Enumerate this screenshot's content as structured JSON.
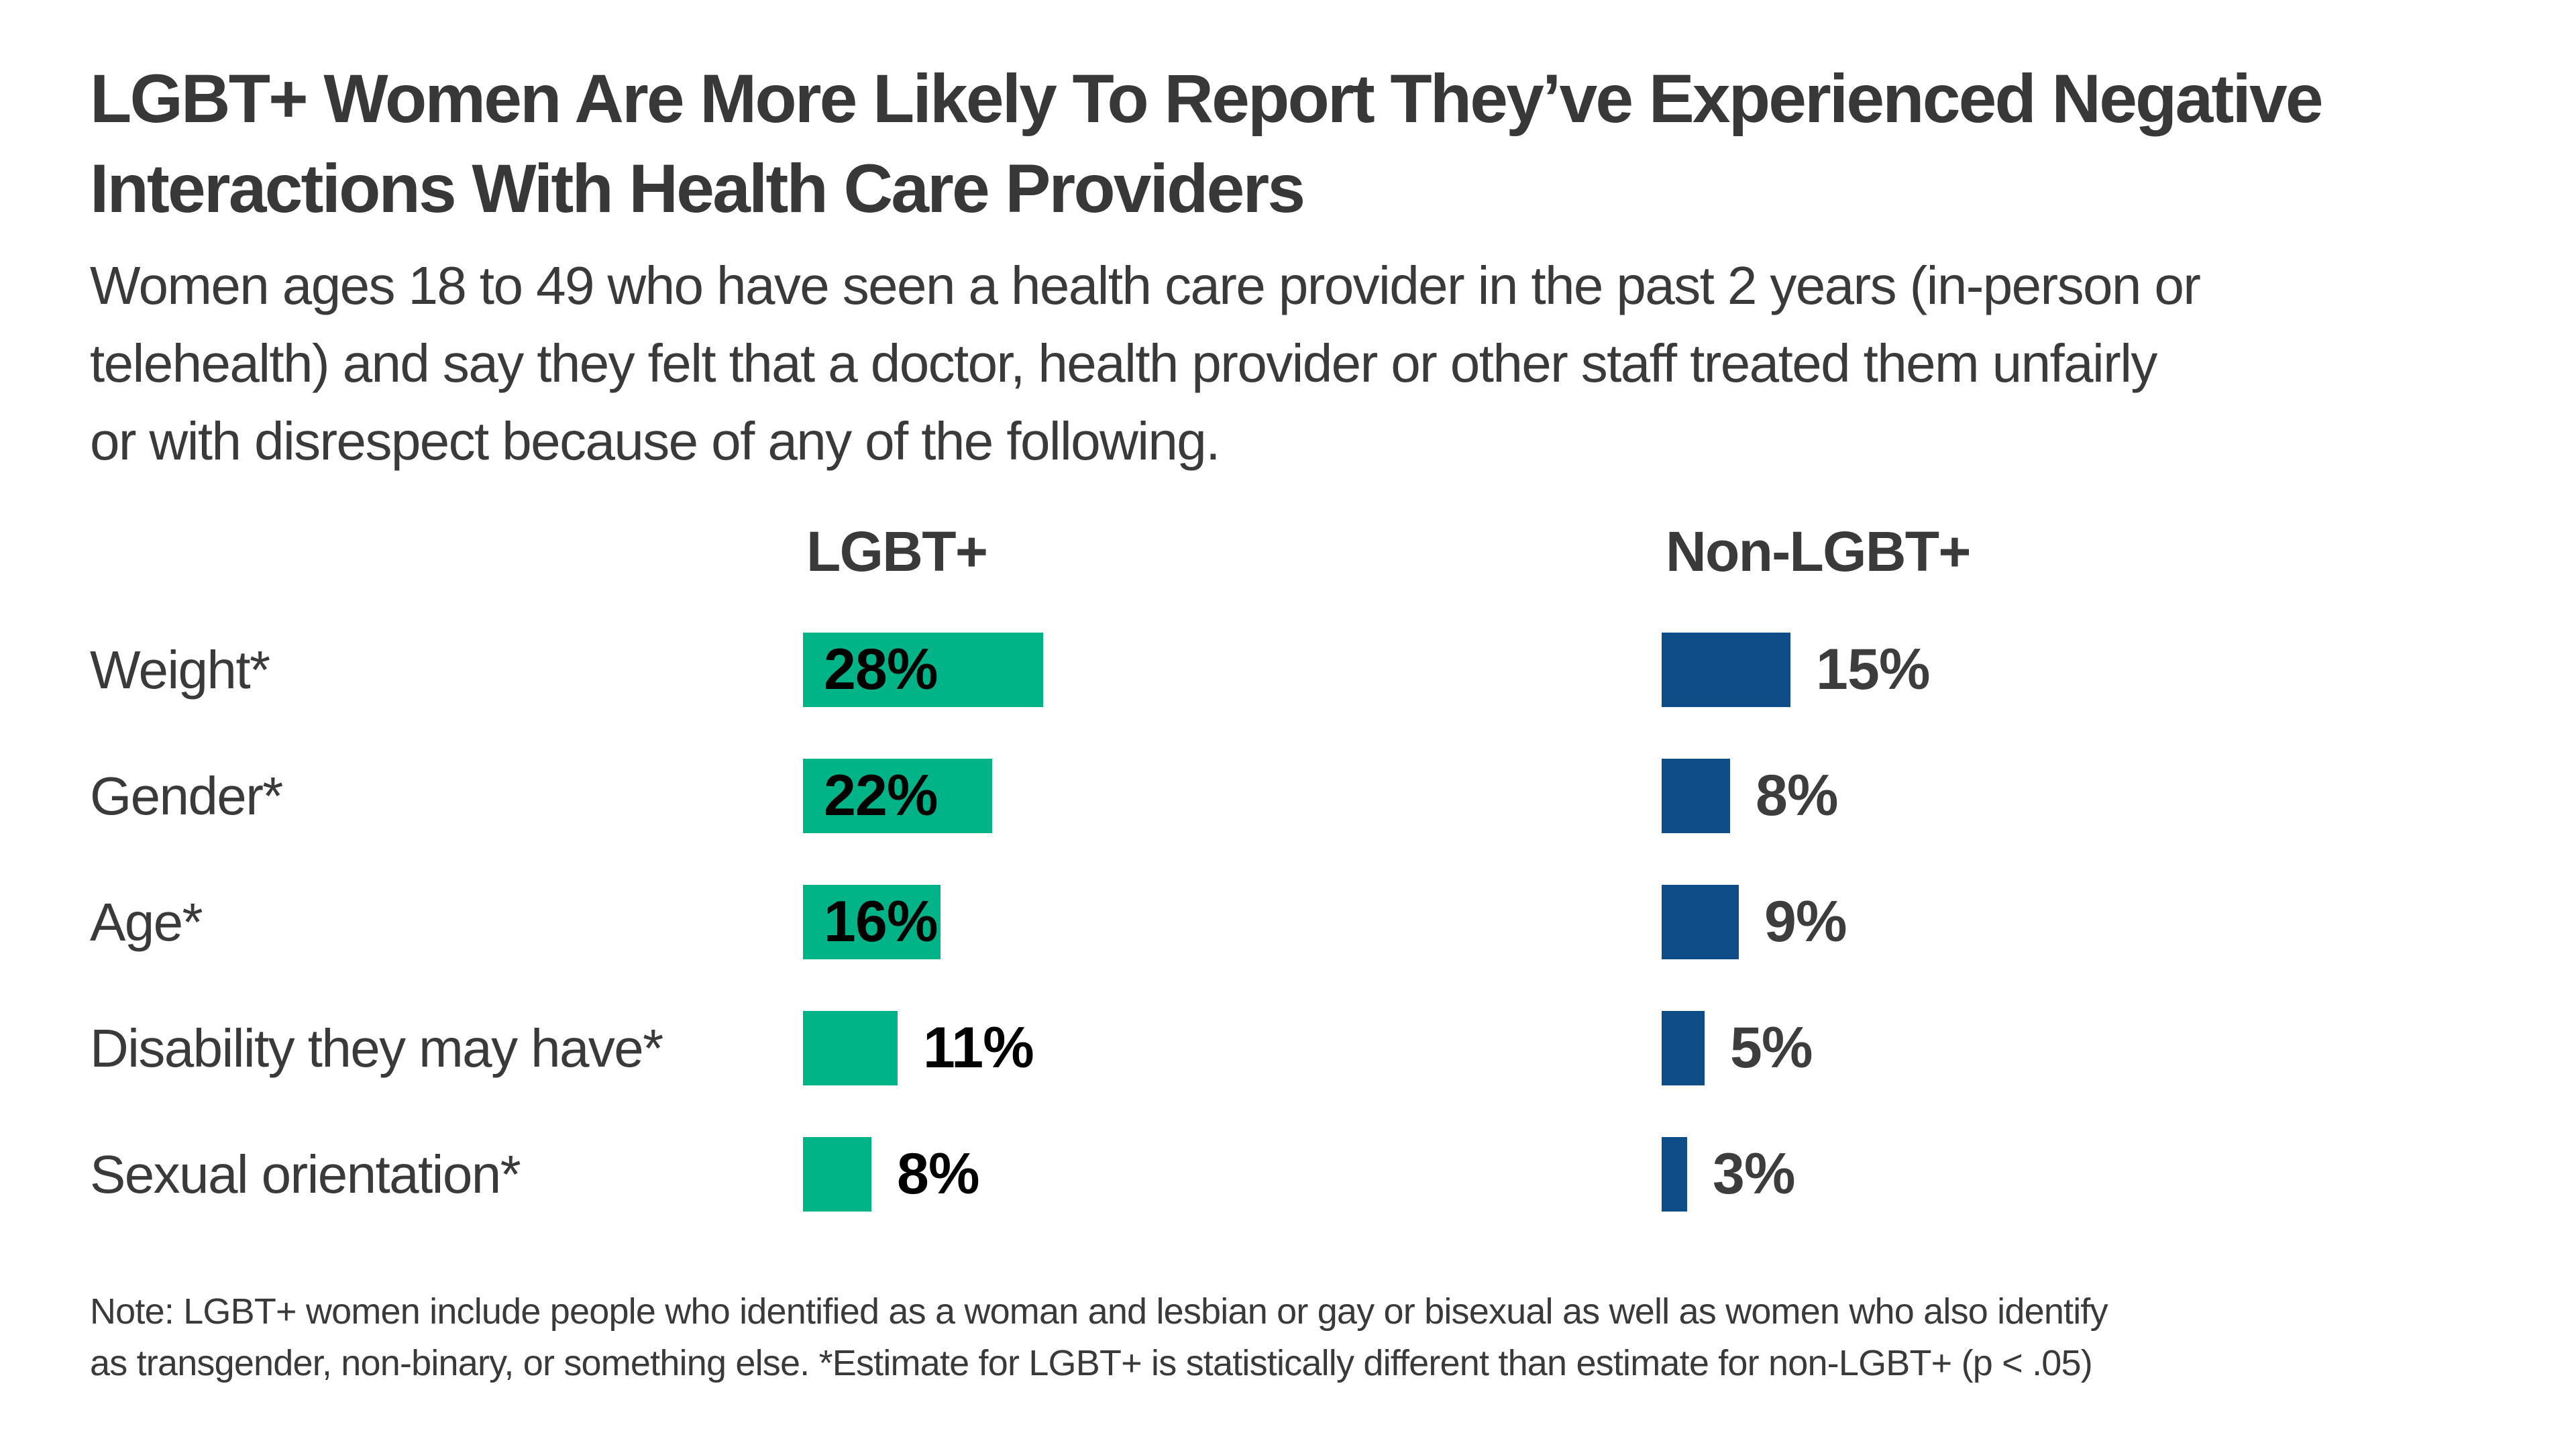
{
  "title": {
    "line1": "LGBT+ Women Are More Likely To Report They’ve Experienced Negative",
    "line2": "Interactions With Health Care Providers"
  },
  "subtitle": {
    "line1": "Women ages 18 to 49 who have seen a health care provider in the past 2 years (in-person or",
    "line2": "telehealth) and say they felt that a doctor, health provider or other staff treated them unfairly",
    "line3": "or with disrespect because of any of the following."
  },
  "note": {
    "line1": "Note: LGBT+ women include people who identified as a woman and lesbian or gay or bisexual as well as women who also identify",
    "line2": "as transgender, non-binary, or something else. *Estimate for LGBT+ is statistically different than estimate for non-LGBT+ (p < .05)"
  },
  "colors": {
    "lgbt_bar": "#00B487",
    "non_lgbt_bar": "#0E4D88",
    "lgbt_value_label": "#000000",
    "non_lgbt_value_label": "#3D3D3D",
    "text": "#3A3A3A"
  },
  "chart_data": {
    "type": "bar",
    "orientation": "horizontal",
    "value_format": "percent",
    "title": "LGBT+ Women Are More Likely To Report They’ve Experienced Negative Interactions With Health Care Providers",
    "categories": [
      "Weight*",
      "Gender*",
      "Age*",
      "Disability they may have*",
      "Sexual orientation*"
    ],
    "series": [
      {
        "name": "LGBT+",
        "color": "#00B487",
        "values": [
          28,
          22,
          16,
          11,
          8
        ],
        "value_labels": [
          "28%",
          "22%",
          "16%",
          "11%",
          "8%"
        ],
        "label_inside": [
          true,
          true,
          true,
          false,
          false
        ]
      },
      {
        "name": "Non-LGBT+",
        "color": "#0E4D88",
        "values": [
          15,
          8,
          9,
          5,
          3
        ],
        "value_labels": [
          "15%",
          "8%",
          "9%",
          "5%",
          "3%"
        ],
        "label_inside": [
          false,
          false,
          false,
          false,
          false
        ]
      }
    ],
    "xlim": [
      0,
      30
    ],
    "grid": false,
    "axes_shown": false,
    "legend_position": "column-headers"
  }
}
